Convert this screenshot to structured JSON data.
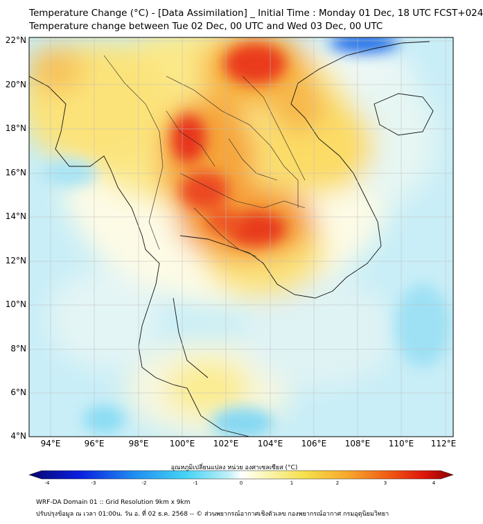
{
  "header": {
    "title_line1": "Temperature Change (°C) - [Data Assimilation] _ Initial Time : Monday 01 Dec, 18 UTC FCST+024",
    "title_line2": "Temperature change between Tue 02 Dec, 00 UTC and Wed 03 Dec, 00 UTC"
  },
  "map": {
    "lat_labels": [
      "22°N",
      "20°N",
      "18°N",
      "16°N",
      "14°N",
      "12°N",
      "10°N",
      "8°N",
      "6°N",
      "4°N"
    ],
    "lon_labels": [
      "94°E",
      "96°E",
      "98°E",
      "100°E",
      "102°E",
      "104°E",
      "106°E",
      "108°E",
      "110°E",
      "112°E"
    ],
    "background_color": "#c8eef7"
  },
  "colorbar": {
    "label": "อุณหภูมิเปลี่ยนแปลง หน่วย องศาเซลเซียส (°C)",
    "ticks": [
      "-4",
      "-3",
      "-2",
      "-1",
      "0",
      "1",
      "2",
      "3",
      "4"
    ],
    "stops": [
      "#08056f",
      "#0a1fe0",
      "#1f8ff0",
      "#45d4f5",
      "#bfeff7",
      "#ffffff",
      "#fbf7c0",
      "#f6e04a",
      "#f7a82c",
      "#f05a14",
      "#e0160c",
      "#8c0000"
    ]
  },
  "footer": {
    "line1": "WRF-DA Domain 01 :: Grid Resolution 9km x 9km",
    "line2": "ปรับปรุงข้อมูล ณ เวลา 01:00น. วัน อ. ที่ 02 ธ.ค. 2568 -- © ส่วนพยากรณ์อากาศเชิงตัวเลข กองพยากรณ์อากาศ กรมอุตุนิยมวิทยา"
  }
}
